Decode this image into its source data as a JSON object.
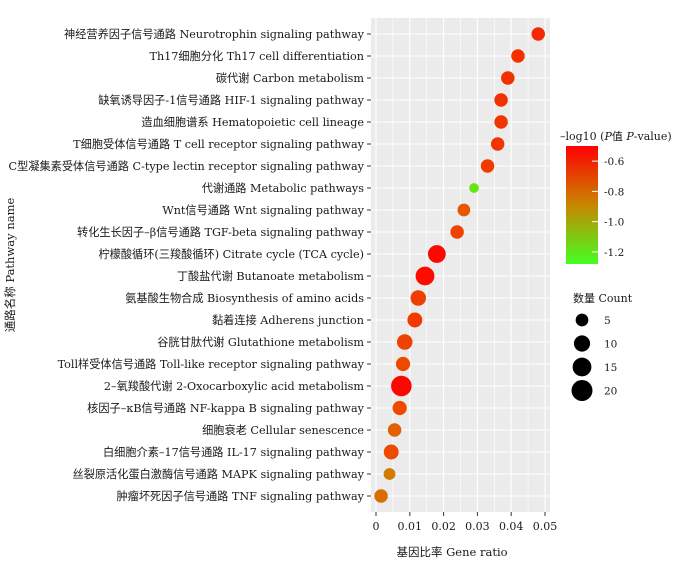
{
  "chart_data": {
    "type": "scatter",
    "title": "",
    "xlabel": "基因比率 Gene ratio",
    "ylabel": "通路名称 Pathway name",
    "xlim": [
      0,
      0.05
    ],
    "xticks": [
      "0",
      "0.01",
      "0.02",
      "0.03",
      "0.04",
      "0.05"
    ],
    "grid": true,
    "categories": [
      "神经营养因子信号通路 Neurotrophin signaling pathway",
      "Th17细胞分化 Th17 cell differentiation",
      "碳代谢 Carbon metabolism",
      "缺氧诱导因子-1信号通路 HIF-1 signaling pathway",
      "造血细胞谱系 Hematopoietic cell lineage",
      "T细胞受体信号通路 T cell receptor signaling pathway",
      "C型凝集素受体信号通路 C-type lectin receptor signaling pathway",
      "代谢通路  Metabolic pathways",
      "Wnt信号通路 Wnt signaling pathway",
      "转化生长因子–β信号通路 TGF-beta signaling pathway",
      "柠檬酸循环(三羧酸循环) Citrate cycle (TCA cycle)",
      "丁酸盐代谢 Butanoate metabolism",
      "氨基酸生物合成 Biosynthesis of amino acids",
      "黏着连接 Adherens junction",
      "谷胱甘肽代谢 Glutathione metabolism",
      "Toll样受体信号通路 Toll-like receptor signaling pathway",
      "2–氧羧酸代谢 2-Oxocarboxylic acid metabolism",
      "核因子–κB信号通路 NF-kappa B signaling pathway",
      "细胞衰老 Cellular senescence",
      "白细胞介素–17信号通路 IL-17 signaling pathway",
      "丝裂原活化蛋白激酶信号通路 MAPK signaling pathway",
      "肿瘤坏死因子信号通路 TNF signaling pathway"
    ],
    "points": [
      {
        "x": 0.048,
        "count": 6,
        "log10p": -0.6
      },
      {
        "x": 0.042,
        "count": 6,
        "log10p": -0.62
      },
      {
        "x": 0.039,
        "count": 6,
        "log10p": -0.62
      },
      {
        "x": 0.037,
        "count": 6,
        "log10p": -0.62
      },
      {
        "x": 0.037,
        "count": 6,
        "log10p": -0.63
      },
      {
        "x": 0.036,
        "count": 6,
        "log10p": -0.63
      },
      {
        "x": 0.033,
        "count": 6,
        "log10p": -0.64
      },
      {
        "x": 0.029,
        "count": 2,
        "log10p": -1.2
      },
      {
        "x": 0.026,
        "count": 5,
        "log10p": -0.72
      },
      {
        "x": 0.024,
        "count": 6,
        "log10p": -0.66
      },
      {
        "x": 0.018,
        "count": 13,
        "log10p": -0.52
      },
      {
        "x": 0.0145,
        "count": 15,
        "log10p": -0.53
      },
      {
        "x": 0.0125,
        "count": 9,
        "log10p": -0.65
      },
      {
        "x": 0.0115,
        "count": 8,
        "log10p": -0.64
      },
      {
        "x": 0.0085,
        "count": 9,
        "log10p": -0.66
      },
      {
        "x": 0.008,
        "count": 7,
        "log10p": -0.68
      },
      {
        "x": 0.0075,
        "count": 19,
        "log10p": -0.52
      },
      {
        "x": 0.007,
        "count": 7,
        "log10p": -0.68
      },
      {
        "x": 0.0055,
        "count": 6,
        "log10p": -0.75
      },
      {
        "x": 0.0045,
        "count": 8,
        "log10p": -0.68
      },
      {
        "x": 0.004,
        "count": 4,
        "log10p": -0.85
      },
      {
        "x": 0.0015,
        "count": 6,
        "log10p": -0.8
      }
    ],
    "color_scale": {
      "title_prefix": "–log10 (",
      "title_p1": "P",
      "title_mid": "值  ",
      "title_p2": "P",
      "title_suffix": "-value)",
      "ticks": [
        "-0.6",
        "-0.8",
        "-1.0",
        "-1.2"
      ],
      "tick_values": [
        -0.6,
        -0.8,
        -1.0,
        -1.2
      ],
      "range": [
        -1.28,
        -0.5
      ],
      "high_color": "#ff0000",
      "low_color": "#44ff22"
    },
    "size_legend": {
      "title": "数量  Count",
      "values": [
        5,
        10,
        15,
        20
      ]
    },
    "colors": {
      "panel_background": "#ebebeb",
      "grid": "#ffffff"
    }
  }
}
